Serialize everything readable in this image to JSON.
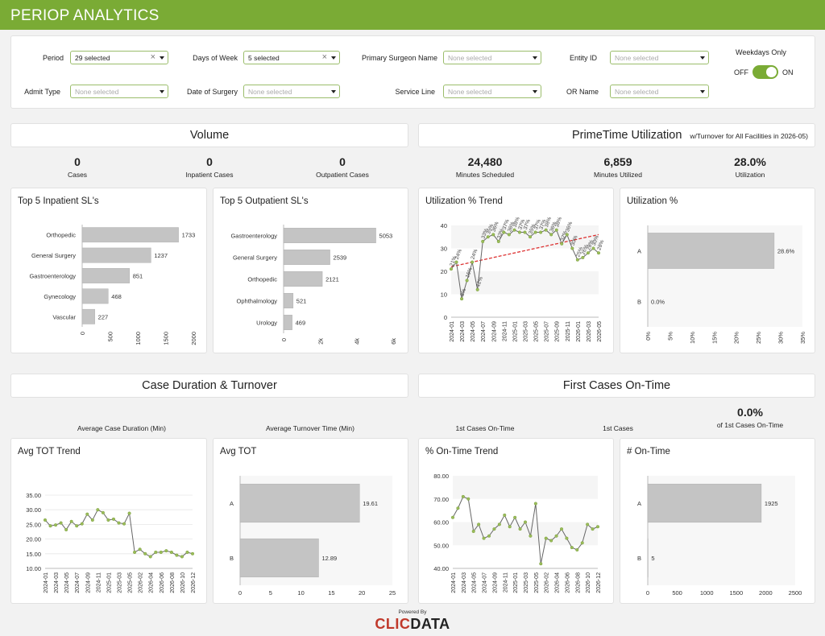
{
  "app": {
    "title": "PERIOP ANALYTICS"
  },
  "filters": {
    "period": {
      "label": "Period",
      "value": "29 selected"
    },
    "days_of_week": {
      "label": "Days of Week",
      "value": "5 selected"
    },
    "primary_surgeon": {
      "label": "Primary Surgeon Name",
      "placeholder": "None selected"
    },
    "entity_id": {
      "label": "Entity ID",
      "placeholder": "None selected"
    },
    "admit_type": {
      "label": "Admit Type",
      "placeholder": "None selected"
    },
    "date_of_surgery": {
      "label": "Date of Surgery",
      "placeholder": "None selected"
    },
    "service_line": {
      "label": "Service Line",
      "placeholder": "None selected"
    },
    "or_name": {
      "label": "OR Name",
      "placeholder": "None selected"
    },
    "weekdays_only": {
      "label": "Weekdays Only",
      "off": "OFF",
      "on": "ON",
      "state": "on"
    }
  },
  "sections": {
    "volume": "Volume",
    "primetime": "PrimeTime Utilization",
    "primetime_sub": "w/Turnover for All Facilities in 2026-05)",
    "duration": "Case Duration & Turnover",
    "first_cases": "First Cases On-Time"
  },
  "kpis": {
    "cases": {
      "value": "0",
      "label": "Cases"
    },
    "inpatient": {
      "value": "0",
      "label": "Inpatient Cases"
    },
    "outpatient": {
      "value": "0",
      "label": "Outpatient Cases"
    },
    "min_scheduled": {
      "value": "24,480",
      "label": "Minutes Scheduled"
    },
    "min_utilized": {
      "value": "6,859",
      "label": "Minutes Utilized"
    },
    "utilization": {
      "value": "28.0%",
      "label": "Utilization"
    },
    "avg_case_duration": {
      "label": "Average Case Duration (Min)"
    },
    "avg_turnover": {
      "label": "Average Turnover Time (Min)"
    },
    "first_on_time": {
      "label": "1st Cases On-Time"
    },
    "first_cases": {
      "label": "1st Cases"
    },
    "pct_first_on_time": {
      "value": "0.0%",
      "label": "of 1st Cases On-Time"
    }
  },
  "widgets": {
    "inpatient_sl": "Top 5 Inpatient SL's",
    "outpatient_sl": "Top 5 Outpatient SL's",
    "util_trend": "Utilization % Trend",
    "util_pct": "Utilization %",
    "tot_trend": "Avg TOT Trend",
    "avg_tot": "Avg TOT",
    "ontime_trend": "% On-Time Trend",
    "num_ontime": "# On-Time"
  },
  "chart_data": [
    {
      "id": "inpatient",
      "type": "bar",
      "orientation": "horizontal",
      "categories": [
        "Orthopedic",
        "General Surgery",
        "Gastroenterology",
        "Gynecology",
        "Vascular"
      ],
      "values": [
        1733,
        1237,
        851,
        468,
        227
      ],
      "xlim": [
        0,
        2000
      ],
      "xticks": [
        "0",
        "500",
        "1000",
        "1500",
        "2000"
      ]
    },
    {
      "id": "outpatient",
      "type": "bar",
      "orientation": "horizontal",
      "categories": [
        "Gastroenterology",
        "General Surgery",
        "Orthopedic",
        "Ophthalmology",
        "Urology"
      ],
      "values": [
        5053,
        2539,
        2121,
        521,
        469
      ],
      "xlim": [
        0,
        6000
      ],
      "xticks": [
        "0",
        "2k",
        "4k",
        "6k"
      ]
    },
    {
      "id": "util_trend",
      "type": "line",
      "x": [
        "2024-01",
        "2024-02",
        "2024-03",
        "2024-04",
        "2024-05",
        "2024-06",
        "2024-07",
        "2024-08",
        "2024-09",
        "2024-10",
        "2024-11",
        "2024-12",
        "2025-01",
        "2025-02",
        "2025-03",
        "2025-04",
        "2025-05",
        "2025-06",
        "2025-07",
        "2025-08",
        "2025-09",
        "2025-10",
        "2025-11",
        "2025-12",
        "2026-01",
        "2026-02",
        "2026-03",
        "2026-04",
        "2026-05"
      ],
      "xtick_labels": [
        "2024-01",
        "2024-03",
        "2024-05",
        "2024-07",
        "2024-09",
        "2024-11",
        "2025-01",
        "2025-03",
        "2025-05",
        "2025-07",
        "2025-09",
        "2025-11",
        "2026-01",
        "2026-03",
        "2026-05"
      ],
      "values": [
        21,
        24,
        8,
        16,
        24,
        12,
        33,
        35,
        36,
        33,
        37,
        36,
        38,
        37,
        37,
        35,
        37,
        37,
        38,
        36,
        38,
        32,
        36,
        30,
        25,
        26,
        28,
        30,
        28
      ],
      "data_labels": [
        "21%",
        "24%",
        "8%",
        "16%",
        "24%",
        "12%",
        "33%",
        "35%",
        "36%",
        "33%",
        "37%",
        "36%",
        "38%",
        "37%",
        "37%",
        "35%",
        "37%",
        "37%",
        "38%",
        "36%",
        "38%",
        "32%",
        "36%",
        "30%",
        "25%",
        "26%",
        "28%",
        "30%",
        "28%"
      ],
      "trendline": [
        22,
        36
      ],
      "ylim": [
        0,
        40
      ],
      "yticks": [
        "0",
        "10",
        "20",
        "30",
        "40"
      ]
    },
    {
      "id": "util_pct",
      "type": "bar",
      "orientation": "horizontal",
      "categories": [
        "A",
        "B"
      ],
      "values": [
        28.6,
        0.0
      ],
      "data_labels": [
        "28.6%",
        "0.0%"
      ],
      "xlim": [
        0,
        35
      ],
      "xticks": [
        "0%",
        "5%",
        "10%",
        "15%",
        "20%",
        "25%",
        "30%",
        "35%"
      ]
    },
    {
      "id": "tot_trend",
      "type": "line",
      "x": [
        "2024-01",
        "2024-02",
        "2024-03",
        "2024-04",
        "2024-05",
        "2024-06",
        "2024-07",
        "2024-08",
        "2024-09",
        "2024-10",
        "2024-11",
        "2024-12",
        "2025-01",
        "2025-02",
        "2025-03",
        "2025-04",
        "2025-05",
        "2026-01",
        "2026-02",
        "2026-03",
        "2026-04",
        "2026-05",
        "2026-06",
        "2026-07",
        "2026-08",
        "2026-09",
        "2026-10",
        "2026-11",
        "2026-12"
      ],
      "xtick_labels": [
        "2024-01",
        "2024-03",
        "2024-05",
        "2024-07",
        "2024-09",
        "2024-11",
        "2025-01",
        "2025-03",
        "2025-05",
        "2026-02",
        "2026-04",
        "2026-06",
        "2026-08",
        "2026-10",
        "2026-12"
      ],
      "values": [
        26.5,
        24.5,
        24.8,
        25.5,
        23.2,
        26,
        24.5,
        25.2,
        28.5,
        26.5,
        30,
        29,
        26.5,
        26.8,
        25.5,
        25.2,
        28.8,
        15.5,
        16.5,
        15,
        14,
        15.5,
        15.5,
        16,
        15.5,
        14.5,
        14,
        15.5,
        15
      ],
      "ylim": [
        10,
        35
      ],
      "yticks": [
        "10.00",
        "15.00",
        "20.00",
        "25.00",
        "30.00",
        "35.00"
      ]
    },
    {
      "id": "avg_tot",
      "type": "bar",
      "orientation": "horizontal",
      "categories": [
        "A",
        "B"
      ],
      "values": [
        19.61,
        12.89
      ],
      "data_labels": [
        "19.61",
        "12.89"
      ],
      "xlim": [
        0,
        25
      ],
      "xticks": [
        "0",
        "5",
        "10",
        "15",
        "20",
        "25"
      ]
    },
    {
      "id": "ontime_trend",
      "type": "line",
      "x": [
        "2024-01",
        "2024-02",
        "2024-03",
        "2024-04",
        "2024-05",
        "2024-06",
        "2024-07",
        "2024-08",
        "2024-09",
        "2024-10",
        "2024-11",
        "2024-12",
        "2025-01",
        "2025-02",
        "2025-03",
        "2025-04",
        "2025-05",
        "2026-01",
        "2026-02",
        "2026-03",
        "2026-04",
        "2026-05",
        "2026-06",
        "2026-07",
        "2026-08",
        "2026-09",
        "2026-10",
        "2026-11",
        "2026-12"
      ],
      "xtick_labels": [
        "2024-01",
        "2024-03",
        "2024-05",
        "2024-07",
        "2024-09",
        "2024-11",
        "2025-01",
        "2025-03",
        "2025-05",
        "2026-02",
        "2026-04",
        "2026-06",
        "2026-08",
        "2026-10",
        "2026-12"
      ],
      "values": [
        62,
        66,
        71,
        70,
        56,
        59,
        53,
        54,
        57,
        59,
        63,
        58,
        62,
        57,
        60,
        54,
        68,
        42,
        53,
        52,
        54,
        57,
        53,
        49,
        48,
        51,
        59,
        57,
        58
      ],
      "ylim": [
        40,
        80
      ],
      "yticks": [
        "40.00",
        "50.00",
        "60.00",
        "70.00",
        "80.00"
      ]
    },
    {
      "id": "num_ontime",
      "type": "bar",
      "orientation": "horizontal",
      "categories": [
        "A",
        "B"
      ],
      "values": [
        1925,
        5
      ],
      "data_labels": [
        "1925",
        "5"
      ],
      "xlim": [
        0,
        2500
      ],
      "xticks": [
        "0",
        "500",
        "1000",
        "1500",
        "2000",
        "2500"
      ]
    }
  ],
  "footer": {
    "powered_by": "Powered By",
    "logo_a": "CLIC",
    "logo_b": "DATA"
  }
}
